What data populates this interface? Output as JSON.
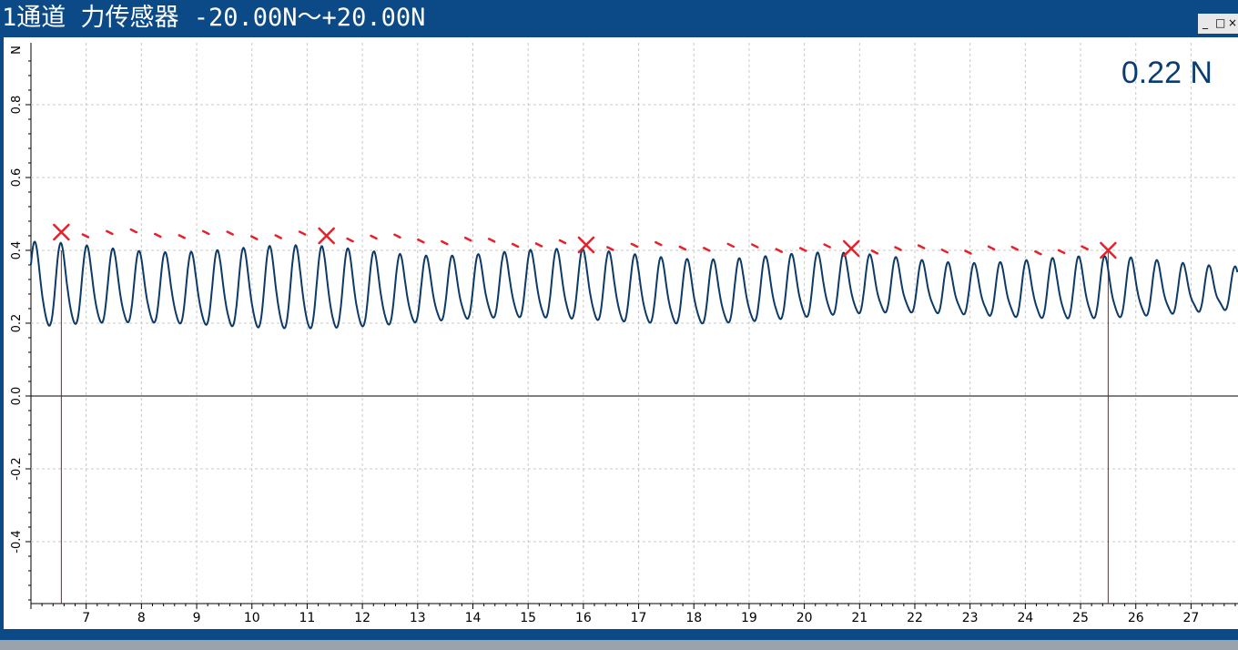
{
  "window": {
    "title": "1通道 力传感器 -20.00N～+20.00N",
    "controls": [
      "_",
      "□",
      "×"
    ]
  },
  "readout": {
    "value": "0.22 N"
  },
  "chart_data": {
    "type": "line",
    "xlim": [
      6.0,
      27.85
    ],
    "ylim": [
      -0.57,
      0.97
    ],
    "x_ticks": [
      "7",
      "8",
      "9",
      "10",
      "11",
      "12",
      "13",
      "14",
      "15",
      "16",
      "17",
      "18",
      "19",
      "20",
      "21",
      "22",
      "23",
      "24",
      "25",
      "26",
      "27"
    ],
    "x_tick_values": [
      7,
      8,
      9,
      10,
      11,
      12,
      13,
      14,
      15,
      16,
      17,
      18,
      19,
      20,
      21,
      22,
      23,
      24,
      25,
      26,
      27
    ],
    "y_unit": "N",
    "y_ticks": [
      "0.8",
      "0.6",
      "0.4",
      "0.2",
      "0.0",
      "-0.2",
      "-0.4"
    ],
    "y_tick_values": [
      0.8,
      0.6,
      0.4,
      0.2,
      0.0,
      -0.2,
      -0.4
    ],
    "grid": true,
    "zero_line": true,
    "series": [
      {
        "color": "#0d3a66",
        "period": 0.4725,
        "max_first": 0.4,
        "max_last": 0.355,
        "min_first": 0.18,
        "min_last": 0.225,
        "x_start": 6.0,
        "x_end": 27.85
      }
    ],
    "cursors": [
      6.55,
      25.5
    ],
    "cursor_color": "#a01818",
    "annotation": {
      "color": "#e8202a",
      "cross_marks": [
        {
          "x": 6.55,
          "y": 0.45
        },
        {
          "x": 11.35,
          "y": 0.44
        },
        {
          "x": 16.05,
          "y": 0.415
        },
        {
          "x": 20.85,
          "y": 0.405
        },
        {
          "x": 25.5,
          "y": 0.4
        }
      ]
    }
  }
}
